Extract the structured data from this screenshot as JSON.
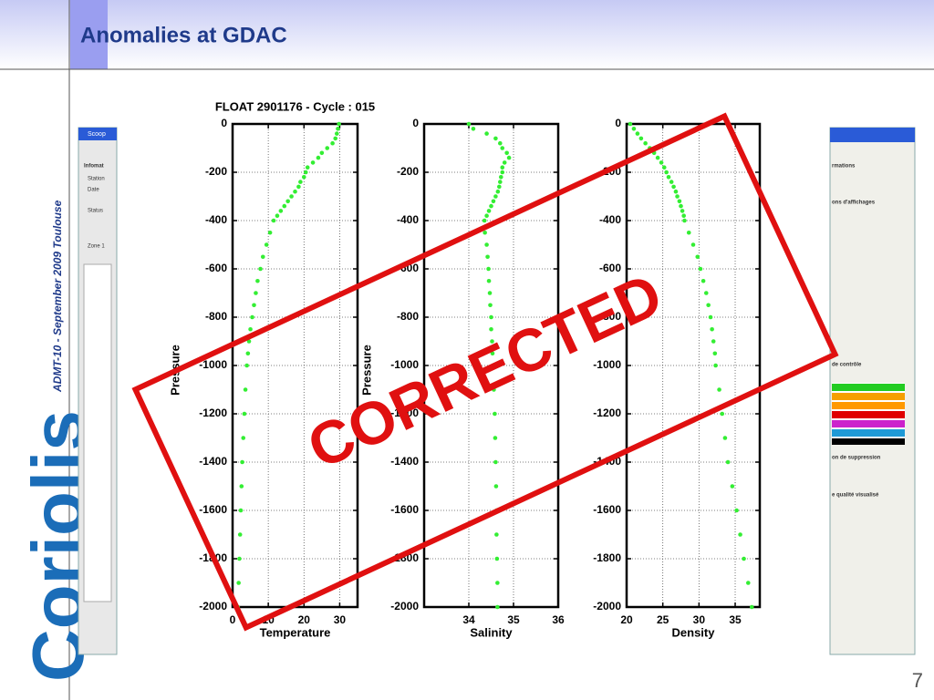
{
  "slide": {
    "title": "Anomalies at GDAC",
    "sidebar": "ADMT-10 - September 2009  Toulouse",
    "logo": "Coriolis",
    "page_number": "7",
    "stamp": "CORRECTED",
    "left_panel": [
      "Scoop",
      "Infomat",
      "Station",
      "Date",
      "Status",
      "Zone 1"
    ],
    "right_panel": [
      "rmations",
      "ons d'affichages",
      "de contrôle",
      "on de suppression",
      "e qualité visualisé"
    ]
  },
  "chart_data": [
    {
      "type": "scatter",
      "title": "FLOAT 2901176 - Cycle : 015",
      "x_label": "Temperature",
      "y_label": "Pressure",
      "color": "#33ee33",
      "grid": true,
      "xlim": [
        0,
        35
      ],
      "xticks": [
        0,
        10,
        20,
        30
      ],
      "ylim": [
        -2000,
        0
      ],
      "yticks": [
        0,
        -200,
        -400,
        -600,
        -800,
        -1000,
        -1200,
        -1400,
        -1600,
        -1800,
        -2000
      ],
      "x": [
        29.8,
        29.5,
        29.2,
        28.8,
        28,
        26.5,
        25,
        24,
        22.5,
        21,
        20.5,
        20,
        19,
        18.5,
        17.5,
        16.5,
        15.5,
        14.5,
        13.5,
        12.5,
        11.5,
        10.5,
        9.5,
        8.5,
        7.8,
        7,
        6.5,
        6,
        5.5,
        5,
        4.6,
        4.3,
        4,
        3.6,
        3.3,
        3,
        2.7,
        2.5,
        2.3,
        2.1,
        1.9,
        1.7,
        1.5
      ],
      "y": [
        0,
        -20,
        -40,
        -60,
        -80,
        -100,
        -120,
        -140,
        -160,
        -180,
        -200,
        -220,
        -240,
        -260,
        -280,
        -300,
        -320,
        -340,
        -360,
        -380,
        -400,
        -450,
        -500,
        -550,
        -600,
        -650,
        -700,
        -750,
        -800,
        -850,
        -900,
        -950,
        -1000,
        -1100,
        -1200,
        -1300,
        -1400,
        -1500,
        -1600,
        -1700,
        -1800,
        -1900,
        -2000
      ]
    },
    {
      "type": "scatter",
      "x_label": "Salinity",
      "y_label": "Pressure",
      "color": "#33ee33",
      "grid": true,
      "xlim": [
        33,
        36
      ],
      "xticks": [
        34,
        35,
        36
      ],
      "ylim": [
        -2000,
        0
      ],
      "yticks": [
        0,
        -200,
        -400,
        -600,
        -800,
        -1000,
        -1200,
        -1400,
        -1600,
        -1800,
        -2000
      ],
      "x": [
        34.0,
        34.1,
        34.4,
        34.6,
        34.7,
        34.75,
        34.85,
        34.9,
        34.8,
        34.75,
        34.75,
        34.72,
        34.7,
        34.68,
        34.65,
        34.6,
        34.55,
        34.5,
        34.45,
        34.4,
        34.35,
        34.36,
        34.4,
        34.42,
        34.44,
        34.45,
        34.47,
        34.48,
        34.5,
        34.5,
        34.52,
        34.53,
        34.54,
        34.56,
        34.58,
        34.59,
        34.6,
        34.61,
        34.62,
        34.62,
        34.63,
        34.64,
        34.64
      ],
      "y": [
        0,
        -20,
        -40,
        -60,
        -80,
        -100,
        -120,
        -140,
        -160,
        -180,
        -200,
        -220,
        -240,
        -260,
        -280,
        -300,
        -320,
        -340,
        -360,
        -380,
        -400,
        -450,
        -500,
        -550,
        -600,
        -650,
        -700,
        -750,
        -800,
        -850,
        -900,
        -950,
        -1000,
        -1100,
        -1200,
        -1300,
        -1400,
        -1500,
        -1600,
        -1700,
        -1800,
        -1900,
        -2000
      ]
    },
    {
      "type": "scatter",
      "x_label": "Density",
      "color": "#33ee33",
      "grid": true,
      "xlim": [
        20,
        38.4
      ],
      "xticks": [
        20,
        25,
        30,
        35
      ],
      "ylim": [
        -2000,
        0
      ],
      "yticks": [
        0,
        -200,
        -400,
        -600,
        -800,
        -1000,
        -1200,
        -1400,
        -1600,
        -1800,
        -2000
      ],
      "x": [
        20.5,
        21,
        21.5,
        22,
        22.6,
        23.2,
        23.8,
        24.3,
        24.8,
        25.2,
        25.5,
        25.8,
        26.2,
        26.5,
        26.8,
        27,
        27.3,
        27.5,
        27.7,
        27.9,
        28,
        28.6,
        29.2,
        29.8,
        30.2,
        30.6,
        31,
        31.3,
        31.6,
        31.8,
        32,
        32.2,
        32.3,
        32.8,
        33.2,
        33.6,
        34,
        34.6,
        35.2,
        35.7,
        36.2,
        36.8,
        37.3
      ],
      "y": [
        0,
        -20,
        -40,
        -60,
        -80,
        -100,
        -120,
        -140,
        -160,
        -180,
        -200,
        -220,
        -240,
        -260,
        -280,
        -300,
        -320,
        -340,
        -360,
        -380,
        -400,
        -450,
        -500,
        -550,
        -600,
        -650,
        -700,
        -750,
        -800,
        -850,
        -900,
        -950,
        -1000,
        -1100,
        -1200,
        -1300,
        -1400,
        -1500,
        -1600,
        -1700,
        -1800,
        -1900,
        -2000
      ]
    }
  ]
}
